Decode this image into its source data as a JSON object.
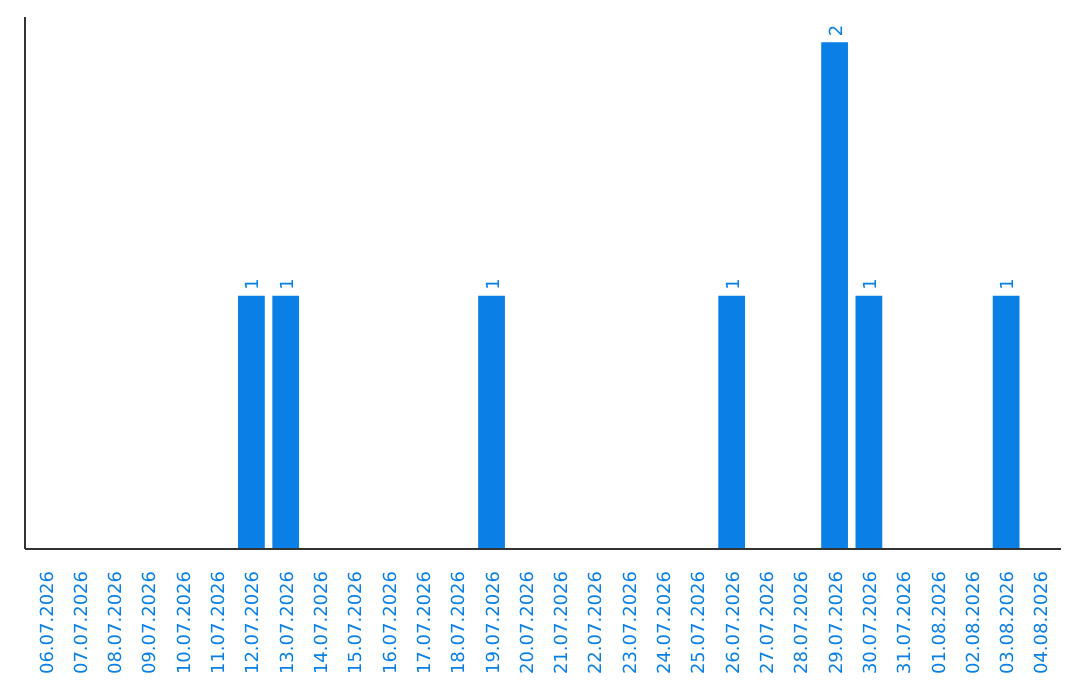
{
  "chart_data": {
    "type": "bar",
    "categories": [
      "06.07.2026",
      "07.07.2026",
      "08.07.2026",
      "09.07.2026",
      "10.07.2026",
      "11.07.2026",
      "12.07.2026",
      "13.07.2026",
      "14.07.2026",
      "15.07.2026",
      "16.07.2026",
      "17.07.2026",
      "18.07.2026",
      "19.07.2026",
      "20.07.2026",
      "21.07.2026",
      "22.07.2026",
      "23.07.2026",
      "24.07.2026",
      "25.07.2026",
      "26.07.2026",
      "27.07.2026",
      "28.07.2026",
      "29.07.2026",
      "30.07.2026",
      "31.07.2026",
      "01.08.2026",
      "02.08.2026",
      "03.08.2026",
      "04.08.2026"
    ],
    "values": [
      0,
      0,
      0,
      0,
      0,
      0,
      1,
      1,
      0,
      0,
      0,
      0,
      0,
      1,
      0,
      0,
      0,
      0,
      0,
      0,
      1,
      0,
      0,
      2,
      1,
      0,
      0,
      0,
      1,
      0
    ],
    "value_labels": [
      null,
      null,
      null,
      null,
      null,
      null,
      "1",
      "1",
      null,
      null,
      null,
      null,
      null,
      "1",
      null,
      null,
      null,
      null,
      null,
      null,
      "1",
      null,
      null,
      "2",
      "1",
      null,
      null,
      null,
      "1",
      null
    ],
    "color": "#0a80e6"
  }
}
